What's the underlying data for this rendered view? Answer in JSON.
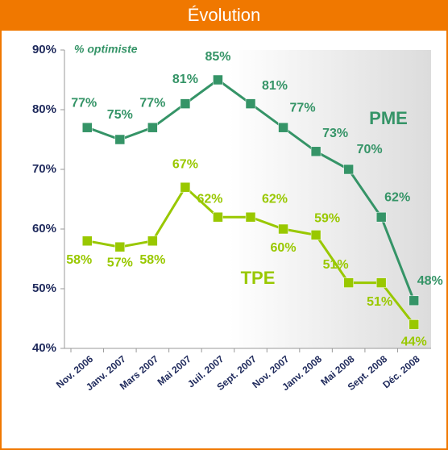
{
  "chart_data": {
    "type": "line",
    "title": "Évolution",
    "subtitle": "% optimiste",
    "categories": [
      "Nov. 2006",
      "Janv. 2007",
      "Mars 2007",
      "Mai 2007",
      "Juil. 2007",
      "Sept. 2007",
      "Nov. 2007",
      "Janv. 2008",
      "Mai 2008",
      "Sept. 2008",
      "Déc. 2008"
    ],
    "series": [
      {
        "name": "PME",
        "color": "#359467",
        "values": [
          77,
          75,
          77,
          81,
          85,
          81,
          77,
          73,
          70,
          62,
          48
        ],
        "value_labels": [
          "77%",
          "75%",
          "77%",
          "81%",
          "85%",
          "81%",
          "77%",
          "73%",
          "70%",
          "62%",
          "48%"
        ]
      },
      {
        "name": "TPE",
        "color": "#99c800",
        "values": [
          58,
          57,
          58,
          67,
          62,
          62,
          60,
          59,
          51,
          51,
          44
        ],
        "value_labels": [
          "58%",
          "57%",
          "58%",
          "67%",
          "62%",
          "62%",
          "60%",
          "59%",
          "51%",
          "51%",
          "44%"
        ]
      }
    ],
    "ylim": [
      40,
      90
    ],
    "yticks": [
      {
        "value": 40,
        "label": "40%"
      },
      {
        "value": 50,
        "label": "50%"
      },
      {
        "value": 60,
        "label": "60%"
      },
      {
        "value": 70,
        "label": "70%"
      },
      {
        "value": 80,
        "label": "80%"
      },
      {
        "value": 90,
        "label": "90%"
      }
    ]
  }
}
